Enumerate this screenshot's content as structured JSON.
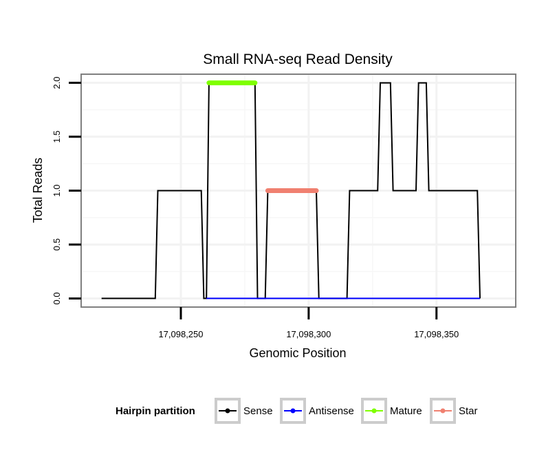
{
  "chart_data": {
    "type": "line",
    "title": "Small RNA-seq Read Density",
    "xlabel": "Genomic Position",
    "ylabel": "Total Reads",
    "xlim": [
      17098211,
      17098381
    ],
    "ylim": [
      -0.08,
      2.08
    ],
    "x_ticks": [
      17098250,
      17098300,
      17098350
    ],
    "x_tick_labels": [
      "17,098,250",
      "17,098,300",
      "17,098,350"
    ],
    "y_ticks": [
      0.0,
      0.5,
      1.0,
      1.5,
      2.0
    ],
    "y_tick_labels": [
      "0.0",
      "0.5",
      "1.0",
      "1.5",
      "2.0"
    ],
    "grid": true,
    "legend_position": "bottom",
    "legend_title": "Hairpin partition",
    "series": [
      {
        "name": "Sense",
        "color": "#000000",
        "style": "line",
        "x": [
          17098219,
          17098240,
          17098241,
          17098258,
          17098259,
          17098260,
          17098261,
          17098279,
          17098280,
          17098283,
          17098284,
          17098303,
          17098304,
          17098315,
          17098316,
          17098327,
          17098328,
          17098332,
          17098333,
          17098342,
          17098343,
          17098346,
          17098347,
          17098366,
          17098367
        ],
        "values": [
          0,
          0,
          1,
          1,
          0,
          0,
          2,
          2,
          0,
          0,
          1,
          1,
          0,
          0,
          1,
          1,
          2,
          2,
          1,
          1,
          2,
          2,
          1,
          1,
          0
        ]
      },
      {
        "name": "Antisense",
        "color": "#0000ff",
        "style": "line",
        "x": [
          17098260,
          17098367
        ],
        "values": [
          0,
          0
        ]
      },
      {
        "name": "Mature",
        "color": "#7fff00",
        "style": "thick",
        "x": [
          17098261,
          17098279
        ],
        "values": [
          2,
          2
        ]
      },
      {
        "name": "Star",
        "color": "#f08070",
        "style": "thick",
        "x": [
          17098284,
          17098303
        ],
        "values": [
          1,
          1
        ]
      }
    ]
  }
}
